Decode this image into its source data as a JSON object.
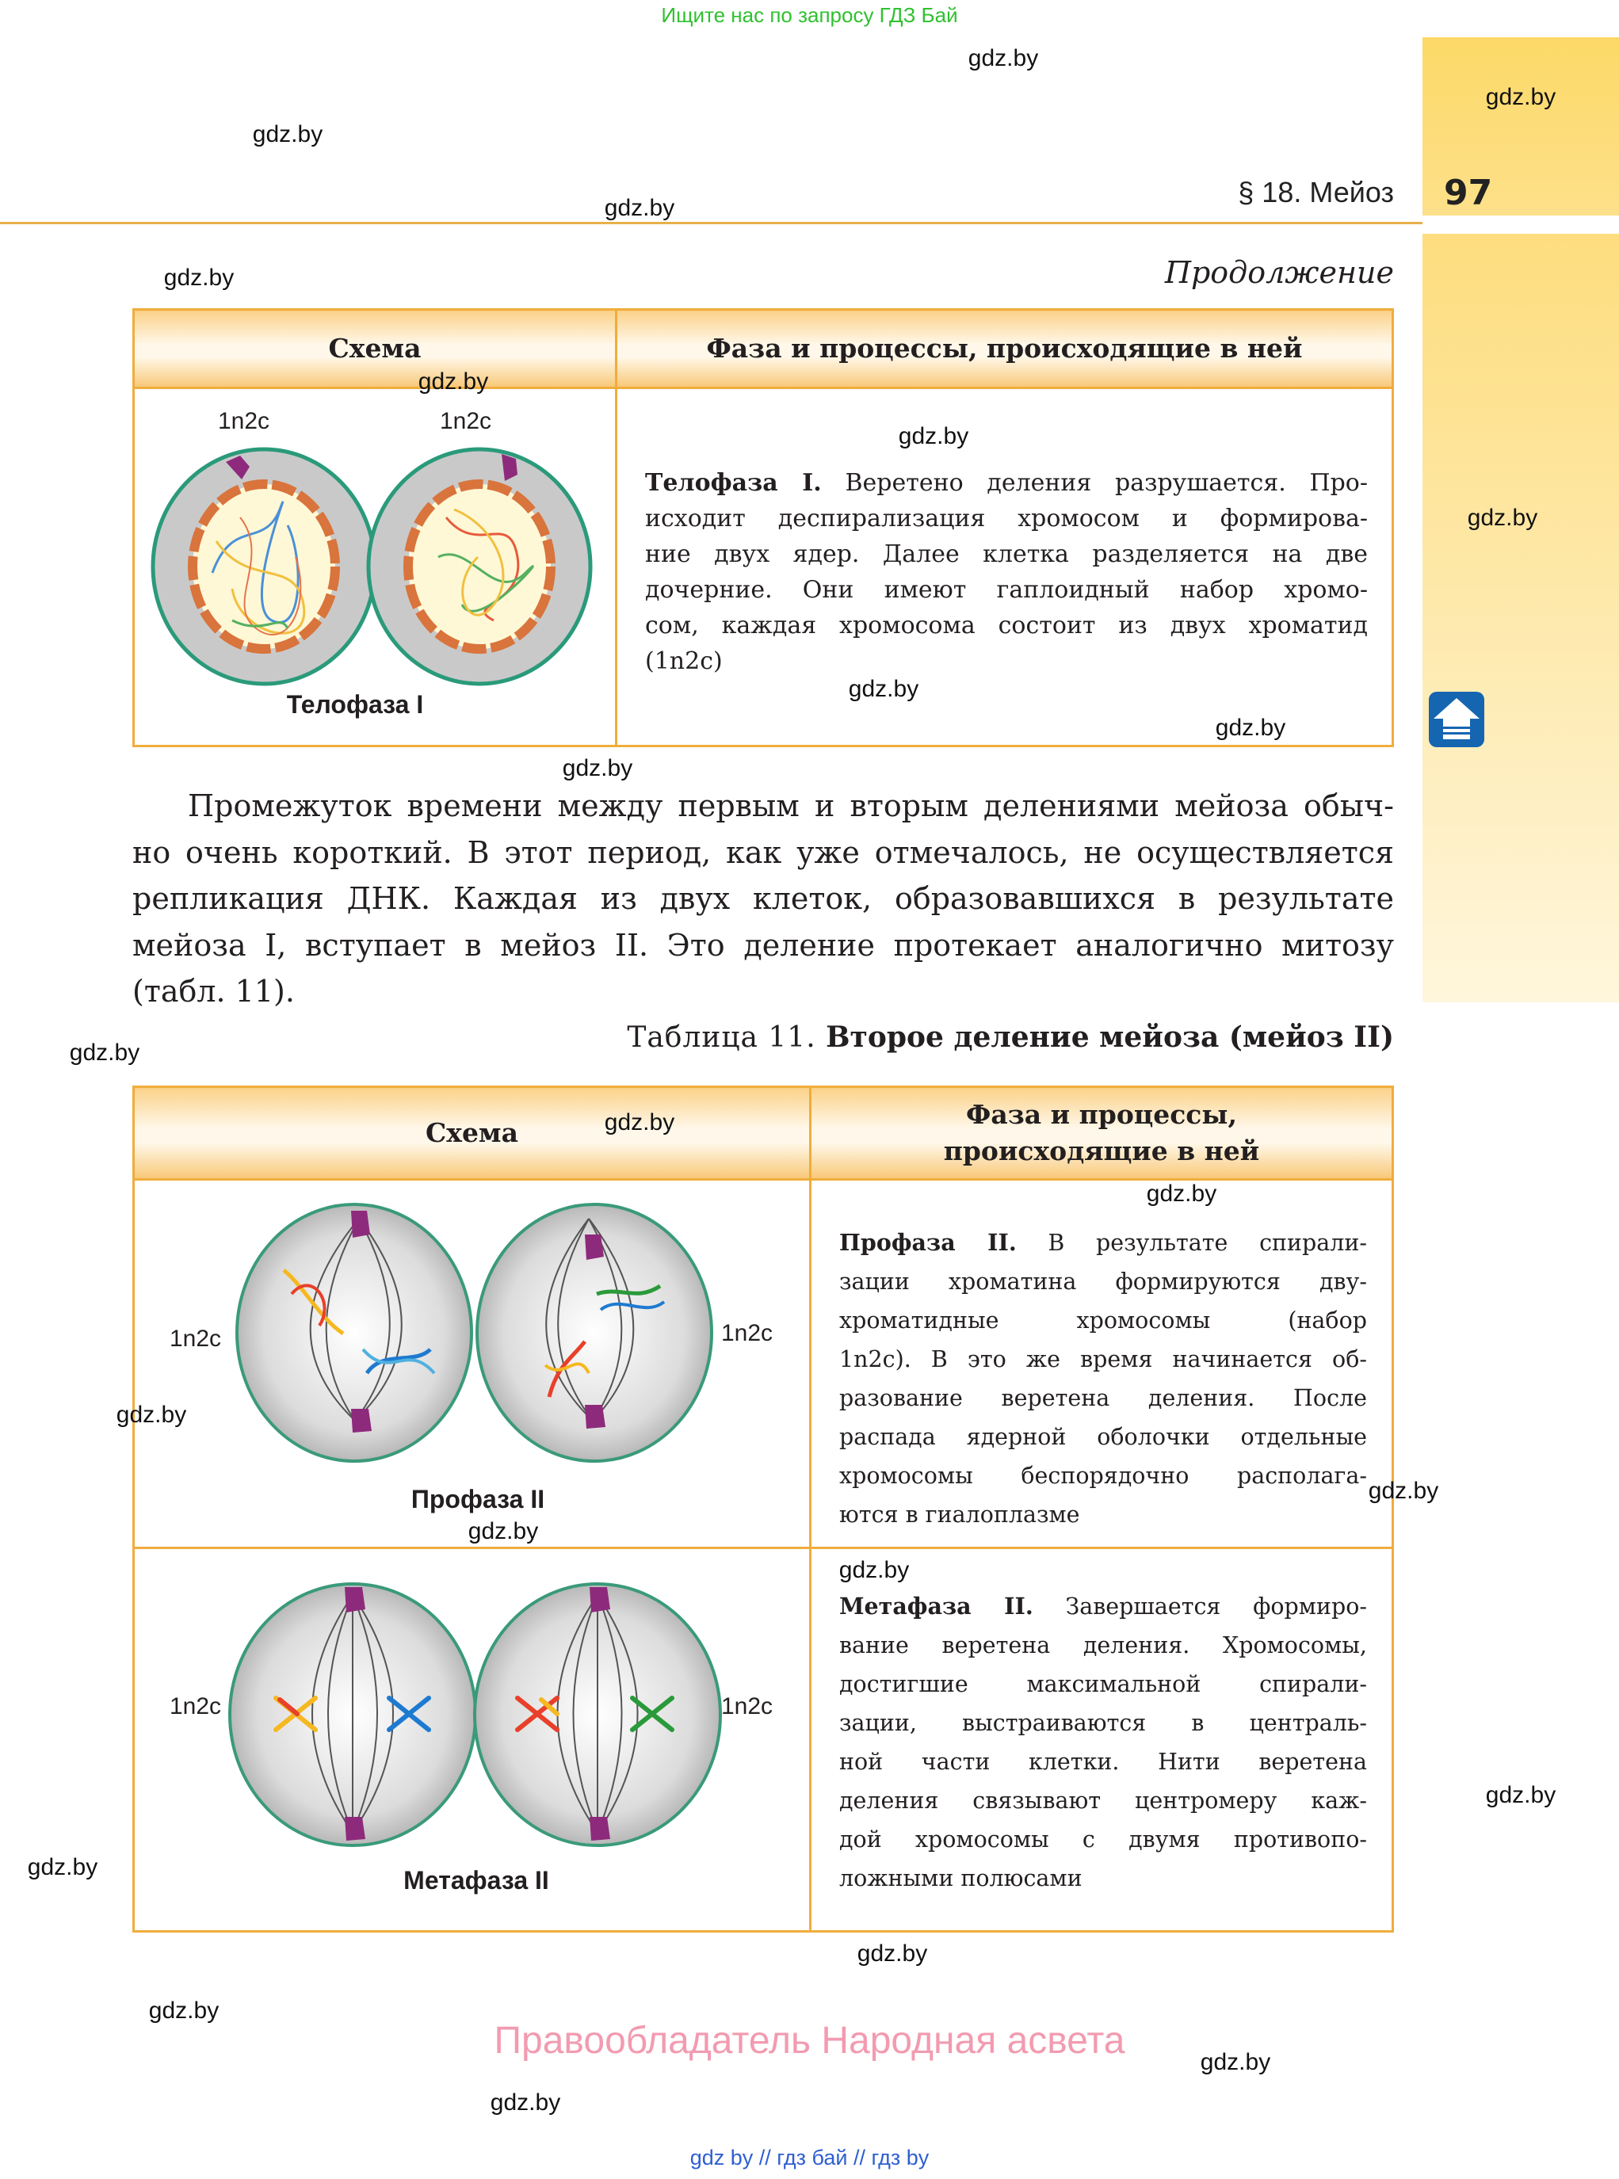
{
  "top_note": "Ищите нас по запросу ГДЗ Бай",
  "header": {
    "section": "§ 18. Мейоз",
    "page_number": "97"
  },
  "continuation": "Продолжение",
  "table_continued": {
    "headers": [
      "Схема",
      "Фаза и процессы, происходящие в ней"
    ],
    "row": {
      "labels": [
        "1n2c",
        "1n2c"
      ],
      "phase_name": "Телофаза I",
      "lead": "Телофаза I.",
      "lines": [
        " Веретено деления разрушается. Про-",
        "исходит деспирализация хромосом и формирова-",
        "ние двух ядер. Далее клетка разделяется на две",
        "дочерние. Они имеют гаплоидный набор хромо-",
        "сом, каждая хромосома состоит из двух хроматид",
        "(1n2c)"
      ]
    }
  },
  "paragraph": [
    "Промежуток времени между первым и вторым делениями мейоза обыч-",
    "но очень короткий. В этот период, как уже отмечалось, не осуществляется",
    "репликация ДНК. Каждая из двух клеток, образовавшихся в результате",
    "мейоза I, вступает в мейоз II. Это деление протекает аналогично митозу",
    "(табл. 11)."
  ],
  "table11": {
    "caption_prefix": "Таблица 11.",
    "caption_title": "Второе деление мейоза (мейоз II)",
    "headers": [
      "Схема",
      "Фаза и процессы,",
      "происходящие в ней"
    ],
    "rows": [
      {
        "labels": [
          "1n2c",
          "1n2c"
        ],
        "phase_name": "Профаза II",
        "lead": "Профаза II.",
        "lines": [
          " В результате спирали-",
          "зации хроматина формируются дву-",
          "хроматидные хромосомы (набор",
          "1n2c). В это же время начинается об-",
          "разование веретена деления. После",
          "распада ядерной оболочки отдельные",
          "хромосомы беспорядочно располага-",
          "ются в гиалоплазме"
        ]
      },
      {
        "labels": [
          "1n2c",
          "1n2c"
        ],
        "phase_name": "Метафаза II",
        "lead": "Метафаза II.",
        "lines": [
          " Завершается формиро-",
          "вание веретена деления. Хромосомы,",
          "достигшие максимальной спирали-",
          "зации, выстраиваются в централь-",
          "ной части клетки. Нити веретена",
          "деления связывают центромеру каж-",
          "дой хромосомы с двумя противопо-",
          "ложными полюсами"
        ]
      }
    ]
  },
  "watermark": "gdz.by",
  "footer": "Правообладатель Народная асвета",
  "bottom_links": "gdz by  //  гдз бай  //  гдз by",
  "icons": {
    "home": "home-arrow-icon"
  },
  "colors": {
    "border": "#f0ad3c",
    "sidebar": "#fcd967",
    "footer": "#f29bb0",
    "top_note": "#2fc12f",
    "home_icon": "#1565b0"
  }
}
